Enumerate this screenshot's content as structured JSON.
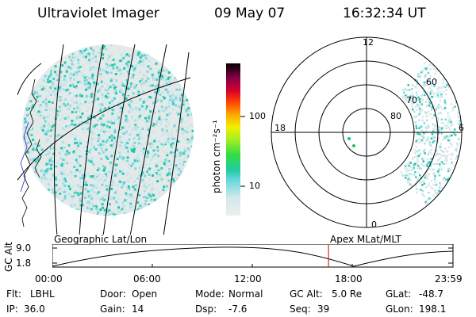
{
  "header": {
    "instrument": "Ultraviolet Imager",
    "date": "09 May 07",
    "time": "16:32:34 UT"
  },
  "colorbar": {
    "label": "photon cm⁻²s⁻¹",
    "ticks": [
      "100",
      "10"
    ]
  },
  "polar": {
    "mlt_labels": [
      "12",
      "18",
      "6",
      "0"
    ],
    "lat_labels": [
      "60",
      "70",
      "80"
    ]
  },
  "timeline": {
    "left_title": "Geographic Lat/Lon",
    "right_title": "Apex MLat/MLT",
    "axis_label": "GC Alt",
    "y_ticks": [
      "9.0",
      "1.8"
    ],
    "x_ticks": [
      "00:00",
      "06:00",
      "12:00",
      "18:00",
      "23:59"
    ],
    "current_time_fraction": 0.6893,
    "marker_color": "#c80000"
  },
  "status": {
    "row1": [
      {
        "label": "Flt:",
        "value": "LBHL"
      },
      {
        "label": "Door:",
        "value": "Open"
      },
      {
        "label": "Mode:",
        "value": "Normal"
      },
      {
        "label": "GC Alt:",
        "value": "5.0 Re"
      },
      {
        "label": "GLat:",
        "value": "-48.7"
      }
    ],
    "row2": [
      {
        "label": "IP:",
        "value": "36.0"
      },
      {
        "label": "Gain:",
        "value": "14"
      },
      {
        "label": "Dsp:",
        "value": "-7.6"
      },
      {
        "label": "Seq:",
        "value": "39"
      },
      {
        "label": "GLon:",
        "value": "198.1"
      }
    ]
  },
  "colors": {
    "scale": [
      "#e8e8e8",
      "#cfe9ea",
      "#9fe0e6",
      "#2ec9c9",
      "#22d87a",
      "#8fe82a",
      "#e6e600",
      "#ffa000",
      "#ff4000",
      "#c8002a",
      "#8a0040",
      "#3a0050",
      "#000000"
    ]
  }
}
